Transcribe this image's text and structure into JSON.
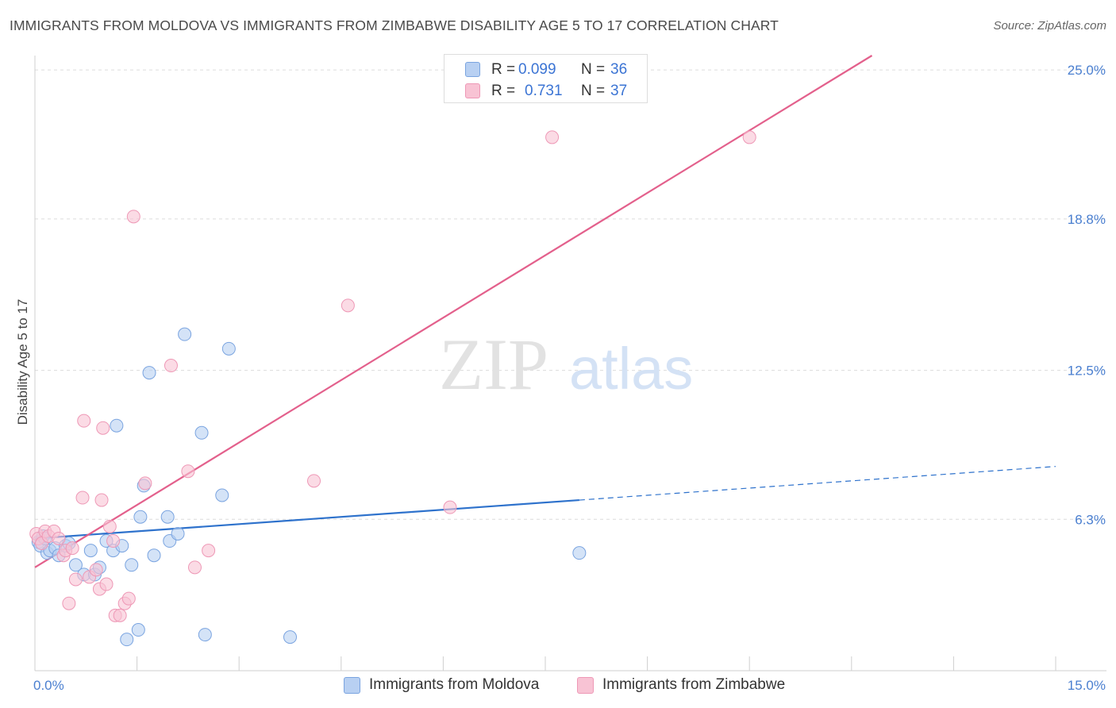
{
  "title": "IMMIGRANTS FROM MOLDOVA VS IMMIGRANTS FROM ZIMBABWE DISABILITY AGE 5 TO 17 CORRELATION CHART",
  "source": "Source: ZipAtlas.com",
  "watermark": {
    "zip": "ZIP",
    "atlas": "atlas"
  },
  "legend": {
    "r_label": "R =",
    "n_label": "N =",
    "series": [
      {
        "name": "Immigrants from Moldova",
        "r": "0.099",
        "n": "36"
      },
      {
        "name": "Immigrants from Zimbabwe",
        "r": "0.731",
        "n": "37"
      }
    ]
  },
  "colors": {
    "moldova_fill": "#b8d0f2",
    "moldova_stroke": "#7aa4e0",
    "moldova_line": "#2e72cc",
    "zimbabwe_fill": "#f8c3d4",
    "zimbabwe_stroke": "#ee98b6",
    "zimbabwe_line": "#e3608c",
    "axis_label": "#4a7fd0"
  },
  "chart_data": {
    "type": "scatter",
    "title": "IMMIGRANTS FROM MOLDOVA VS IMMIGRANTS FROM ZIMBABWE DISABILITY AGE 5 TO 17 CORRELATION CHART",
    "xlabel": "",
    "ylabel": "Disability Age 5 to 17",
    "xlim": [
      0,
      15
    ],
    "ylim": [
      0,
      25.6
    ],
    "x_tick_labels": [
      "0.0%",
      "15.0%"
    ],
    "x_minor_ticks": [
      0,
      1.5,
      3,
      4.5,
      6,
      7.5,
      9,
      10.5,
      12,
      13.5,
      15
    ],
    "y_ticks": [
      6.3,
      12.5,
      18.8,
      25.0
    ],
    "y_tick_labels": [
      "6.3%",
      "12.5%",
      "18.8%",
      "25.0%"
    ],
    "grid": true,
    "series": [
      {
        "name": "Immigrants from Moldova",
        "points": [
          [
            0.05,
            5.35
          ],
          [
            0.08,
            5.2
          ],
          [
            0.12,
            5.6
          ],
          [
            0.18,
            4.9
          ],
          [
            0.22,
            5.0
          ],
          [
            0.3,
            5.1
          ],
          [
            0.35,
            4.8
          ],
          [
            0.45,
            5.2
          ],
          [
            0.5,
            5.3
          ],
          [
            0.6,
            4.4
          ],
          [
            0.72,
            4.0
          ],
          [
            0.82,
            5.0
          ],
          [
            0.88,
            4.0
          ],
          [
            0.95,
            4.3
          ],
          [
            1.05,
            5.4
          ],
          [
            1.15,
            5.0
          ],
          [
            1.2,
            10.2
          ],
          [
            1.28,
            5.2
          ],
          [
            1.35,
            1.3
          ],
          [
            1.42,
            4.4
          ],
          [
            1.52,
            1.7
          ],
          [
            1.55,
            6.4
          ],
          [
            1.6,
            7.7
          ],
          [
            1.68,
            12.4
          ],
          [
            1.75,
            4.8
          ],
          [
            1.95,
            6.4
          ],
          [
            1.98,
            5.4
          ],
          [
            2.1,
            5.7
          ],
          [
            2.2,
            14.0
          ],
          [
            2.45,
            9.9
          ],
          [
            2.5,
            1.5
          ],
          [
            2.75,
            7.3
          ],
          [
            2.85,
            13.4
          ],
          [
            3.75,
            1.4
          ],
          [
            8.0,
            4.9
          ],
          [
            0.15,
            5.5
          ]
        ]
      },
      {
        "name": "Immigrants from Zimbabwe",
        "points": [
          [
            0.02,
            5.7
          ],
          [
            0.05,
            5.5
          ],
          [
            0.1,
            5.3
          ],
          [
            0.15,
            5.8
          ],
          [
            0.2,
            5.6
          ],
          [
            0.28,
            5.8
          ],
          [
            0.35,
            5.5
          ],
          [
            0.42,
            4.8
          ],
          [
            0.45,
            5.0
          ],
          [
            0.5,
            2.8
          ],
          [
            0.55,
            5.1
          ],
          [
            0.6,
            3.8
          ],
          [
            0.7,
            7.2
          ],
          [
            0.72,
            10.4
          ],
          [
            0.8,
            3.9
          ],
          [
            0.9,
            4.2
          ],
          [
            0.95,
            3.4
          ],
          [
            0.98,
            7.1
          ],
          [
            1.0,
            10.1
          ],
          [
            1.05,
            3.6
          ],
          [
            1.1,
            6.0
          ],
          [
            1.15,
            5.4
          ],
          [
            1.18,
            2.3
          ],
          [
            1.25,
            2.3
          ],
          [
            1.32,
            2.8
          ],
          [
            1.38,
            3.0
          ],
          [
            1.45,
            18.9
          ],
          [
            1.62,
            7.8
          ],
          [
            2.0,
            12.7
          ],
          [
            2.25,
            8.3
          ],
          [
            2.35,
            4.3
          ],
          [
            2.55,
            5.0
          ],
          [
            4.1,
            7.9
          ],
          [
            4.6,
            15.2
          ],
          [
            6.1,
            6.8
          ],
          [
            7.6,
            22.2
          ],
          [
            10.5,
            22.2
          ]
        ]
      }
    ],
    "trend_lines": [
      {
        "series": "Immigrants from Moldova",
        "x_start": 0,
        "y_start": 5.5,
        "x_end": 8.0,
        "y_end": 7.1,
        "x_dashed_end": 15.0,
        "y_dashed_end": 8.5
      },
      {
        "series": "Immigrants from Zimbabwe",
        "x_start": 0,
        "y_start": 4.3,
        "x_end": 12.3,
        "y_end": 25.6
      }
    ]
  }
}
